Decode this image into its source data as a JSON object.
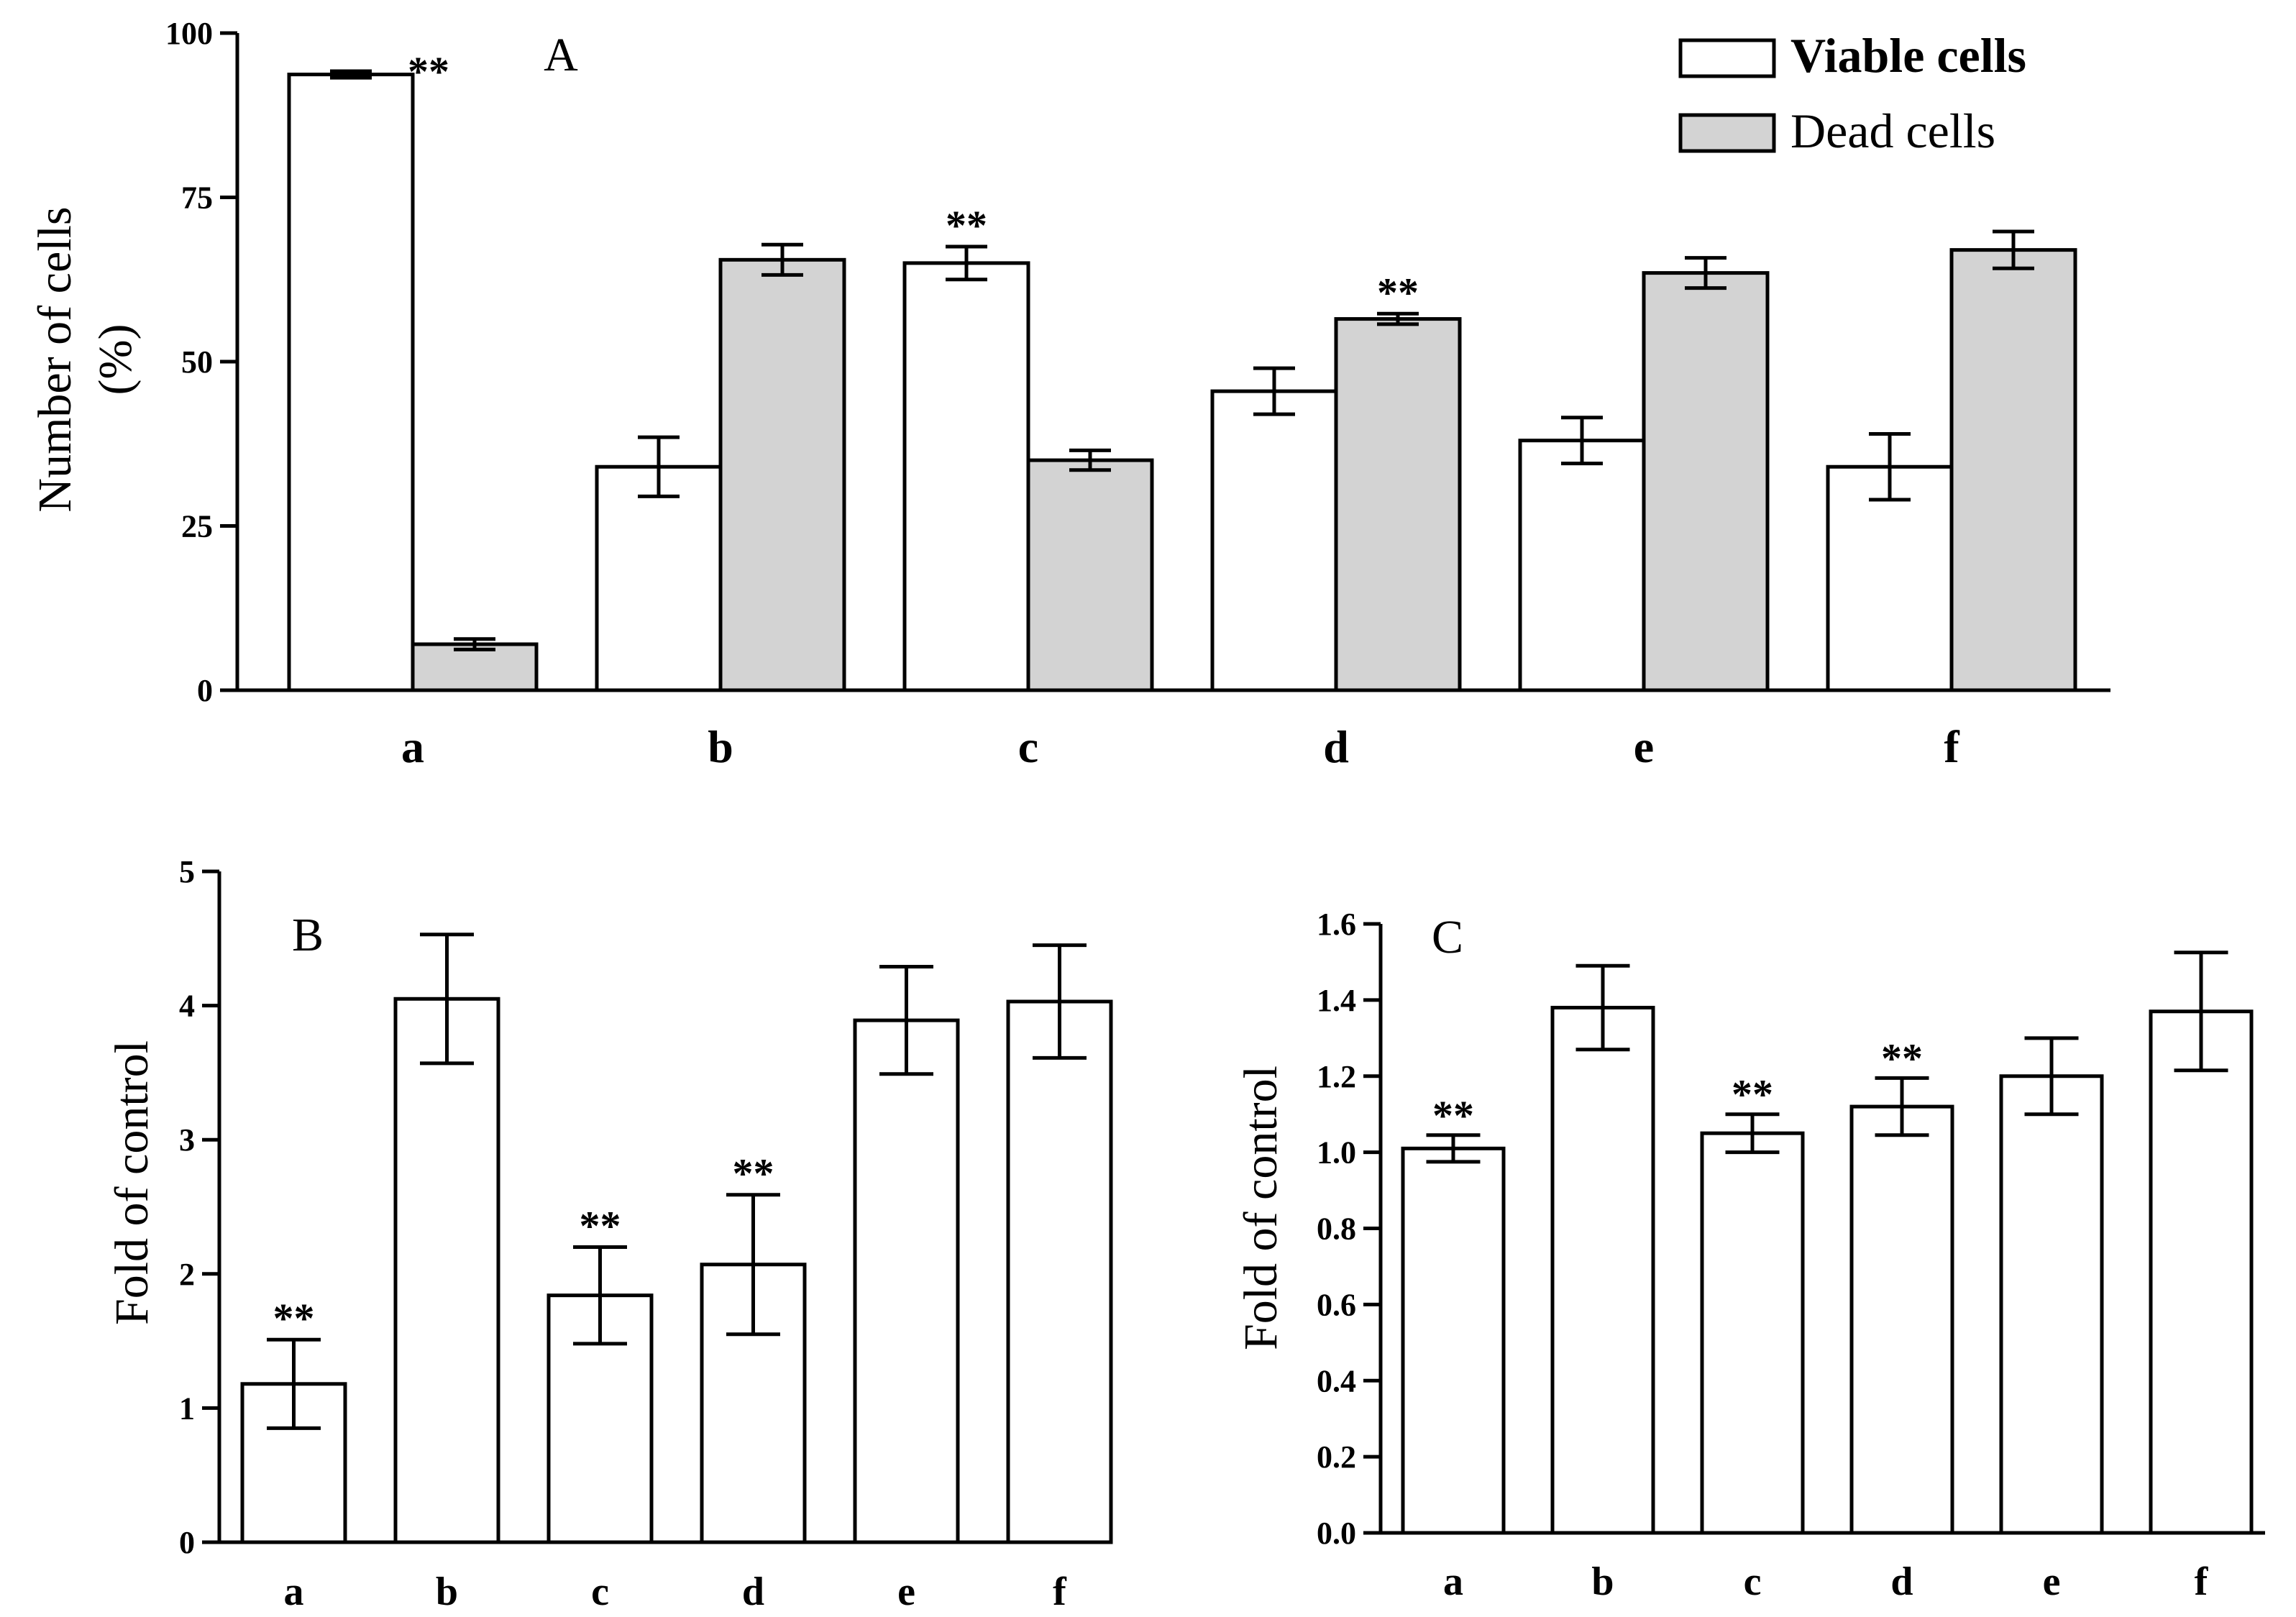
{
  "colors": {
    "viable": "#ffffff",
    "dead": "#d3d3d3",
    "stroke": "#000000"
  },
  "chart_data": [
    {
      "type": "bar",
      "panel": "A",
      "title": "",
      "ylabel_line1": "Number of cells",
      "ylabel_line2": "(%)",
      "xlabel": "",
      "categories": [
        "a",
        "b",
        "c",
        "d",
        "e",
        "f"
      ],
      "ylim": [
        0,
        100
      ],
      "yticks": [
        "0",
        "25",
        "50",
        "75",
        "100"
      ],
      "tick_values": [
        0,
        25,
        50,
        75,
        100
      ],
      "legend_position": "top-right",
      "series": [
        {
          "name": "Viable cells",
          "color_key": "viable",
          "values": [
            93.7,
            34,
            65,
            45.5,
            38,
            34
          ],
          "errors": [
            0.5,
            4.5,
            2.5,
            3.5,
            3.5,
            5
          ]
        },
        {
          "name": "Dead cells",
          "color_key": "dead",
          "values": [
            7,
            65.5,
            35,
            56.5,
            63.5,
            67
          ],
          "errors": [
            0.8,
            2.3,
            1.5,
            0.8,
            2.3,
            2.8
          ]
        }
      ],
      "annotations": [
        {
          "category": 0,
          "series": 0,
          "text": "**"
        },
        {
          "category": 2,
          "series": 0,
          "text": "**"
        },
        {
          "category": 3,
          "series": 1,
          "text": "**"
        }
      ]
    },
    {
      "type": "bar",
      "panel": "B",
      "ylabel": "Fold of control",
      "categories": [
        "a",
        "b",
        "c",
        "d",
        "e",
        "f"
      ],
      "ylim": [
        0,
        5
      ],
      "yticks": [
        "0",
        "1",
        "2",
        "3",
        "4",
        "5"
      ],
      "tick_values": [
        0,
        1,
        2,
        3,
        4,
        5
      ],
      "values": [
        1.18,
        4.05,
        1.84,
        2.07,
        3.89,
        4.03
      ],
      "errors": [
        0.33,
        0.48,
        0.36,
        0.52,
        0.4,
        0.42
      ],
      "annotations": [
        {
          "category": 0,
          "text": "**"
        },
        {
          "category": 2,
          "text": "**"
        },
        {
          "category": 3,
          "text": "**"
        }
      ]
    },
    {
      "type": "bar",
      "panel": "C",
      "ylabel": "Fold of control",
      "categories": [
        "a",
        "b",
        "c",
        "d",
        "e",
        "f"
      ],
      "ylim": [
        0,
        1.6
      ],
      "yticks": [
        "0.0",
        "0.2",
        "0.4",
        "0.6",
        "0.8",
        "1.0",
        "1.2",
        "1.4",
        "1.6"
      ],
      "tick_values": [
        0,
        0.2,
        0.4,
        0.6,
        0.8,
        1.0,
        1.2,
        1.4,
        1.6
      ],
      "values": [
        1.01,
        1.38,
        1.05,
        1.12,
        1.2,
        1.37
      ],
      "errors": [
        0.035,
        0.11,
        0.05,
        0.075,
        0.1,
        0.155
      ],
      "annotations": [
        {
          "category": 0,
          "text": "**"
        },
        {
          "category": 2,
          "text": "**"
        },
        {
          "category": 3,
          "text": "**"
        }
      ]
    }
  ]
}
